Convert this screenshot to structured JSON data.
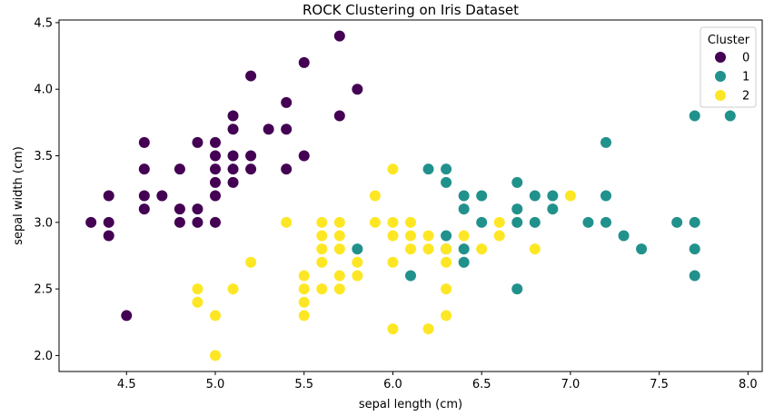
{
  "chart_data": {
    "type": "scatter",
    "title": "ROCK Clustering on Iris Dataset",
    "xlabel": "sepal length (cm)",
    "ylabel": "sepal width (cm)",
    "xlim": [
      4.12,
      8.08
    ],
    "ylim": [
      1.88,
      4.52
    ],
    "xticks": [
      "4.5",
      "5.0",
      "5.5",
      "6.0",
      "6.5",
      "7.0",
      "7.5",
      "8.0"
    ],
    "yticks": [
      "2.0",
      "2.5",
      "3.0",
      "3.5",
      "4.0",
      "4.5"
    ],
    "grid": false,
    "legend": {
      "title": "Cluster",
      "placement": "top-right"
    },
    "series": [
      {
        "name": "0",
        "color": "#440154",
        "points": [
          [
            4.3,
            3.0
          ],
          [
            4.4,
            3.2
          ],
          [
            4.4,
            3.0
          ],
          [
            4.4,
            2.9
          ],
          [
            4.5,
            2.3
          ],
          [
            4.6,
            3.6
          ],
          [
            4.6,
            3.4
          ],
          [
            4.6,
            3.2
          ],
          [
            4.6,
            3.1
          ],
          [
            4.7,
            3.2
          ],
          [
            4.8,
            3.4
          ],
          [
            4.8,
            3.1
          ],
          [
            4.8,
            3.0
          ],
          [
            4.9,
            3.6
          ],
          [
            4.9,
            3.1
          ],
          [
            4.9,
            3.0
          ],
          [
            5.0,
            3.6
          ],
          [
            5.0,
            3.5
          ],
          [
            5.0,
            3.4
          ],
          [
            5.0,
            3.3
          ],
          [
            5.0,
            3.2
          ],
          [
            5.0,
            3.0
          ],
          [
            5.1,
            3.8
          ],
          [
            5.1,
            3.7
          ],
          [
            5.1,
            3.5
          ],
          [
            5.1,
            3.4
          ],
          [
            5.1,
            3.3
          ],
          [
            5.2,
            4.1
          ],
          [
            5.2,
            3.5
          ],
          [
            5.2,
            3.4
          ],
          [
            5.3,
            3.7
          ],
          [
            5.4,
            3.9
          ],
          [
            5.4,
            3.7
          ],
          [
            5.4,
            3.4
          ],
          [
            5.5,
            4.2
          ],
          [
            5.5,
            3.5
          ],
          [
            5.7,
            4.4
          ],
          [
            5.7,
            3.8
          ],
          [
            5.8,
            4.0
          ]
        ]
      },
      {
        "name": "1",
        "color": "#21918c",
        "points": [
          [
            5.8,
            2.8
          ],
          [
            6.1,
            2.6
          ],
          [
            6.2,
            3.4
          ],
          [
            6.3,
            3.4
          ],
          [
            6.3,
            3.3
          ],
          [
            6.3,
            2.9
          ],
          [
            6.3,
            2.8
          ],
          [
            6.4,
            3.2
          ],
          [
            6.4,
            3.1
          ],
          [
            6.4,
            2.8
          ],
          [
            6.4,
            2.7
          ],
          [
            6.5,
            3.2
          ],
          [
            6.5,
            3.0
          ],
          [
            6.7,
            3.3
          ],
          [
            6.7,
            3.1
          ],
          [
            6.7,
            3.0
          ],
          [
            6.7,
            2.5
          ],
          [
            6.8,
            3.2
          ],
          [
            6.8,
            3.0
          ],
          [
            6.9,
            3.2
          ],
          [
            6.9,
            3.1
          ],
          [
            7.1,
            3.0
          ],
          [
            7.2,
            3.6
          ],
          [
            7.2,
            3.2
          ],
          [
            7.2,
            3.0
          ],
          [
            7.3,
            2.9
          ],
          [
            7.4,
            2.8
          ],
          [
            7.6,
            3.0
          ],
          [
            7.7,
            3.8
          ],
          [
            7.7,
            3.0
          ],
          [
            7.7,
            2.8
          ],
          [
            7.7,
            2.6
          ],
          [
            7.9,
            3.8
          ]
        ]
      },
      {
        "name": "2",
        "color": "#fde725",
        "points": [
          [
            4.9,
            2.5
          ],
          [
            4.9,
            2.4
          ],
          [
            5.0,
            2.3
          ],
          [
            5.0,
            2.0
          ],
          [
            5.1,
            2.5
          ],
          [
            5.2,
            2.7
          ],
          [
            5.4,
            3.0
          ],
          [
            5.5,
            2.6
          ],
          [
            5.5,
            2.5
          ],
          [
            5.5,
            2.4
          ],
          [
            5.5,
            2.3
          ],
          [
            5.6,
            3.0
          ],
          [
            5.6,
            2.9
          ],
          [
            5.6,
            2.8
          ],
          [
            5.6,
            2.7
          ],
          [
            5.6,
            2.5
          ],
          [
            5.7,
            3.0
          ],
          [
            5.7,
            2.9
          ],
          [
            5.7,
            2.8
          ],
          [
            5.7,
            2.6
          ],
          [
            5.7,
            2.5
          ],
          [
            5.8,
            2.7
          ],
          [
            5.8,
            2.6
          ],
          [
            5.9,
            3.2
          ],
          [
            5.9,
            3.0
          ],
          [
            6.0,
            3.4
          ],
          [
            6.0,
            3.0
          ],
          [
            6.0,
            2.9
          ],
          [
            6.0,
            2.7
          ],
          [
            6.0,
            2.2
          ],
          [
            6.1,
            3.0
          ],
          [
            6.1,
            2.9
          ],
          [
            6.1,
            2.8
          ],
          [
            6.2,
            2.9
          ],
          [
            6.2,
            2.8
          ],
          [
            6.2,
            2.2
          ],
          [
            6.3,
            2.8
          ],
          [
            6.3,
            2.7
          ],
          [
            6.3,
            2.5
          ],
          [
            6.3,
            2.3
          ],
          [
            6.4,
            2.9
          ],
          [
            6.5,
            2.8
          ],
          [
            6.6,
            3.0
          ],
          [
            6.6,
            2.9
          ],
          [
            6.8,
            2.8
          ],
          [
            7.0,
            3.2
          ]
        ]
      }
    ]
  }
}
